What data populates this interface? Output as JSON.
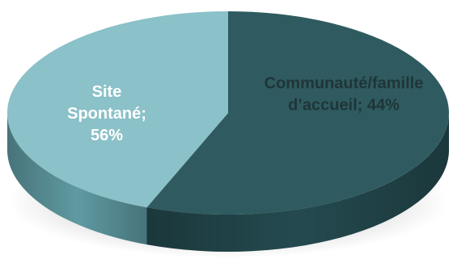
{
  "chart_data": {
    "type": "pie",
    "style": "3d",
    "slices": [
      {
        "name": "Site Spontané",
        "value": 56,
        "label_lines": [
          "Site",
          "Spontané;",
          "56%"
        ],
        "color": "#2f5b60",
        "side_color": "#244a4f",
        "label_color": "#ffffff"
      },
      {
        "name": "Communauté/famille d’accueil",
        "value": 44,
        "label_lines": [
          "Communauté/famille",
          "d’accueil; 44%"
        ],
        "color": "#8bc1c8",
        "side_color": "#5f9aa2",
        "label_color": "#1f3538"
      }
    ],
    "legend": "none"
  }
}
